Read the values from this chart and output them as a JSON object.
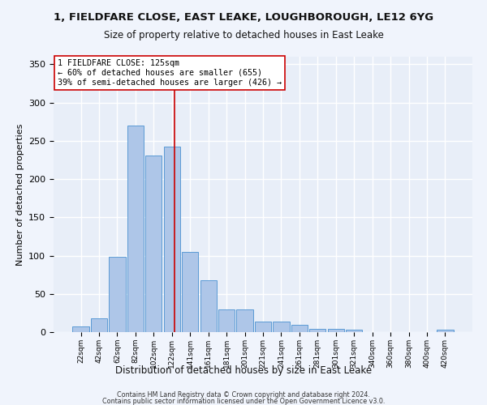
{
  "title1": "1, FIELDFARE CLOSE, EAST LEAKE, LOUGHBOROUGH, LE12 6YG",
  "title2": "Size of property relative to detached houses in East Leake",
  "xlabel": "Distribution of detached houses by size in East Leake",
  "ylabel": "Number of detached properties",
  "categories": [
    "22sqm",
    "42sqm",
    "62sqm",
    "82sqm",
    "102sqm",
    "122sqm",
    "141sqm",
    "161sqm",
    "181sqm",
    "201sqm",
    "221sqm",
    "241sqm",
    "261sqm",
    "281sqm",
    "301sqm",
    "321sqm",
    "340sqm",
    "360sqm",
    "380sqm",
    "400sqm",
    "420sqm"
  ],
  "values": [
    7,
    18,
    99,
    270,
    231,
    242,
    105,
    68,
    30,
    30,
    14,
    14,
    10,
    4,
    4,
    3,
    0,
    0,
    0,
    0,
    3
  ],
  "bar_color": "#aec6e8",
  "bar_edge_color": "#5b9bd5",
  "property_label": "1 FIELDFARE CLOSE: 125sqm",
  "smaller_pct": "60%",
  "smaller_count": 655,
  "larger_pct": "39%",
  "larger_count": 426,
  "vline_color": "#cc0000",
  "vline_x_index": 5.15,
  "annotation_box_color": "#ffffff",
  "annotation_box_edge": "#cc0000",
  "ylim": [
    0,
    360
  ],
  "yticks": [
    0,
    50,
    100,
    150,
    200,
    250,
    300,
    350
  ],
  "bg_color": "#e8eef8",
  "grid_color": "#ffffff",
  "footer1": "Contains HM Land Registry data © Crown copyright and database right 2024.",
  "footer2": "Contains public sector information licensed under the Open Government Licence v3.0."
}
